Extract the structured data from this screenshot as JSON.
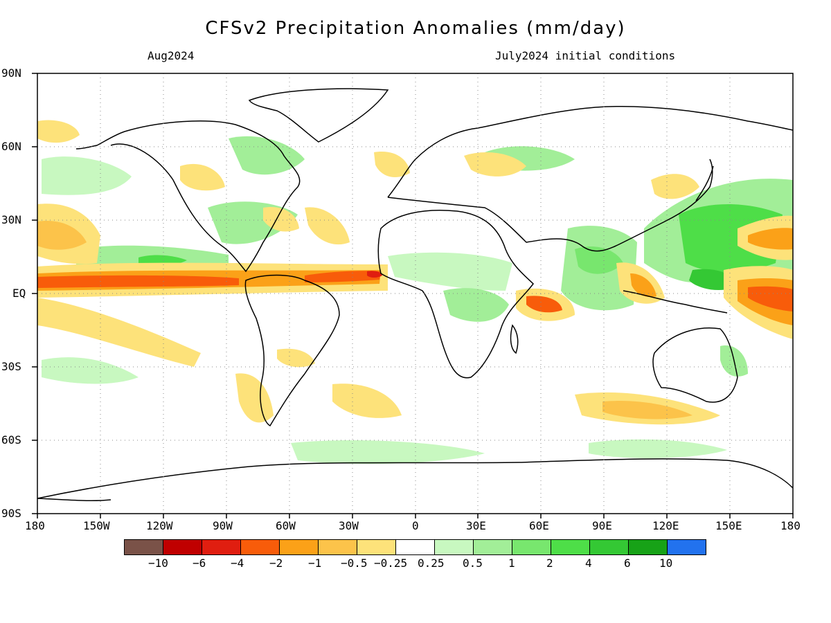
{
  "title": "CFSv2 Precipitation Anomalies (mm/day)",
  "subtitle_left": "Aug2024",
  "subtitle_right": "July2024 initial conditions",
  "lat_labels": [
    "90N",
    "60N",
    "30N",
    "EQ",
    "30S",
    "60S",
    "90S"
  ],
  "lon_labels": [
    "180",
    "150W",
    "120W",
    "90W",
    "60W",
    "30W",
    "0",
    "30E",
    "60E",
    "90E",
    "120E",
    "150E",
    "180"
  ],
  "colorbar": {
    "colors": [
      "#7a5248",
      "#c00000",
      "#e01e10",
      "#f85c0a",
      "#fba118",
      "#fcc34a",
      "#fde27a",
      "#ffffff",
      "#c8f8c0",
      "#a2ee98",
      "#78e66e",
      "#4ede48",
      "#34c834",
      "#17a217",
      "#2272ee"
    ],
    "labels": [
      "−10",
      "−6",
      "−4",
      "−2",
      "−1",
      "−0.5",
      "−0.25",
      "0.25",
      "0.5",
      "1",
      "2",
      "4",
      "6",
      "10"
    ]
  }
}
